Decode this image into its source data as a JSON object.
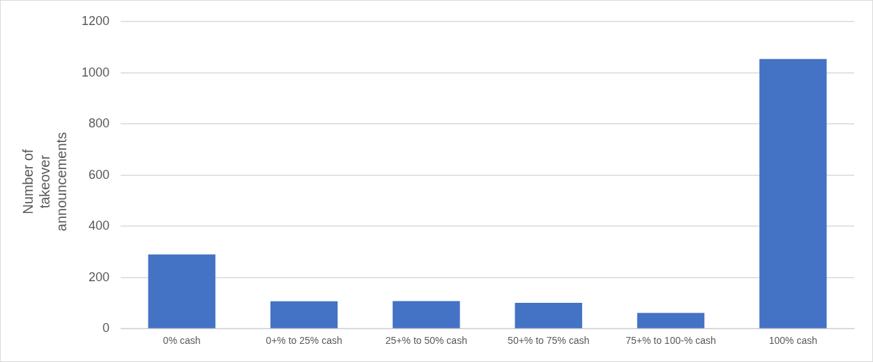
{
  "chart_data": {
    "type": "bar",
    "ylabel": "Number of takeover announcements",
    "categories": [
      "0% cash",
      "0+% to 25% cash",
      "25+% to 50% cash",
      "50+% to 75% cash",
      "75+% to 100-% cash",
      "100% cash"
    ],
    "values": [
      290,
      107,
      108,
      101,
      62,
      1054
    ],
    "color": "#4472c4",
    "ylim": [
      0,
      1200
    ],
    "yticks": [
      0,
      200,
      400,
      600,
      800,
      1000,
      1200
    ],
    "grid": "y",
    "legend": false
  }
}
